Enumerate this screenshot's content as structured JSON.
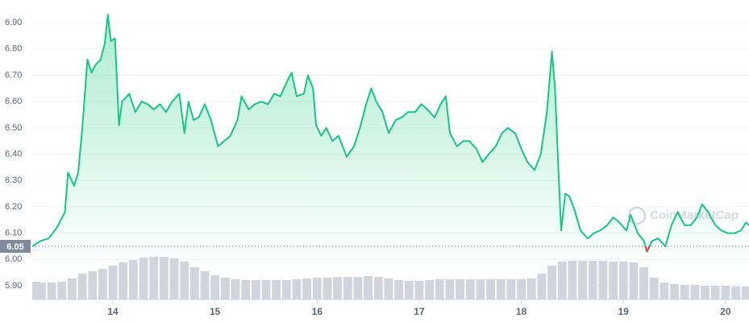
{
  "chart_data": {
    "type": "line",
    "watermark": "CoinMarketCap",
    "color": "#16c784",
    "down_color": "#ea3943",
    "reference_price": 6.05,
    "grid": true,
    "xlim": [
      13.21,
      20.23
    ],
    "ylim": [
      5.848,
      6.986
    ],
    "xticks": [
      14,
      15,
      16,
      17,
      18,
      19,
      20
    ],
    "yticks": [
      {
        "value": 6.9,
        "label": "6.90"
      },
      {
        "value": 6.8,
        "label": "6.80"
      },
      {
        "value": 6.7,
        "label": "6.70"
      },
      {
        "value": 6.6,
        "label": "6.60"
      },
      {
        "value": 6.5,
        "label": "6.50"
      },
      {
        "value": 6.4,
        "label": "6.40"
      },
      {
        "value": 6.3,
        "label": "6.30"
      },
      {
        "value": 6.2,
        "label": "6.20"
      },
      {
        "value": 6.1,
        "label": "6.10"
      },
      {
        "value": 6.0,
        "label": "6.00"
      },
      {
        "value": 5.9,
        "label": "5.90"
      }
    ],
    "x": [
      13.21,
      13.29,
      13.37,
      13.45,
      13.53,
      13.56,
      13.62,
      13.66,
      13.7,
      13.75,
      13.79,
      13.83,
      13.88,
      13.92,
      13.95,
      13.98,
      14.02,
      14.06,
      14.09,
      14.16,
      14.22,
      14.28,
      14.34,
      14.4,
      14.46,
      14.52,
      14.58,
      14.65,
      14.7,
      14.74,
      14.79,
      14.84,
      14.9,
      14.96,
      15.03,
      15.09,
      15.15,
      15.22,
      15.26,
      15.33,
      15.39,
      15.45,
      15.52,
      15.58,
      15.64,
      15.71,
      15.75,
      15.8,
      15.87,
      15.91,
      15.96,
      15.99,
      16.04,
      16.09,
      16.15,
      16.21,
      16.29,
      16.36,
      16.42,
      16.48,
      16.53,
      16.58,
      16.64,
      16.7,
      16.77,
      16.83,
      16.89,
      16.96,
      17.02,
      17.08,
      17.15,
      17.21,
      17.26,
      17.3,
      17.37,
      17.43,
      17.49,
      17.56,
      17.62,
      17.68,
      17.75,
      17.81,
      17.87,
      17.94,
      18.0,
      18.06,
      18.13,
      18.19,
      18.25,
      18.3,
      18.33,
      18.36,
      18.39,
      18.43,
      18.47,
      18.52,
      18.58,
      18.65,
      18.71,
      18.77,
      18.84,
      18.9,
      18.96,
      19.03,
      19.07,
      19.14,
      19.2,
      19.23,
      19.28,
      19.34,
      19.41,
      19.47,
      19.53,
      19.6,
      19.66,
      19.72,
      19.77,
      19.83,
      19.9,
      19.96,
      20.02,
      20.09,
      20.15,
      20.2,
      20.23
    ],
    "values": [
      6.05,
      6.07,
      6.08,
      6.12,
      6.18,
      6.33,
      6.28,
      6.33,
      6.5,
      6.76,
      6.71,
      6.74,
      6.76,
      6.82,
      6.93,
      6.83,
      6.84,
      6.51,
      6.6,
      6.63,
      6.56,
      6.6,
      6.59,
      6.57,
      6.59,
      6.56,
      6.6,
      6.63,
      6.48,
      6.6,
      6.53,
      6.54,
      6.59,
      6.53,
      6.43,
      6.45,
      6.47,
      6.53,
      6.62,
      6.57,
      6.59,
      6.6,
      6.59,
      6.63,
      6.62,
      6.68,
      6.71,
      6.62,
      6.63,
      6.7,
      6.65,
      6.51,
      6.47,
      6.5,
      6.45,
      6.47,
      6.39,
      6.43,
      6.5,
      6.59,
      6.65,
      6.6,
      6.56,
      6.48,
      6.53,
      6.54,
      6.56,
      6.56,
      6.59,
      6.57,
      6.54,
      6.59,
      6.62,
      6.48,
      6.43,
      6.45,
      6.45,
      6.42,
      6.37,
      6.4,
      6.43,
      6.48,
      6.5,
      6.48,
      6.42,
      6.37,
      6.34,
      6.4,
      6.56,
      6.79,
      6.65,
      6.37,
      6.11,
      6.25,
      6.24,
      6.19,
      6.11,
      6.08,
      6.1,
      6.11,
      6.13,
      6.16,
      6.14,
      6.11,
      6.17,
      6.1,
      6.07,
      6.03,
      6.07,
      6.08,
      6.05,
      6.13,
      6.18,
      6.13,
      6.13,
      6.16,
      6.21,
      6.18,
      6.13,
      6.11,
      6.1,
      6.1,
      6.11,
      6.14,
      6.13
    ],
    "volume": {
      "x": [
        13.2,
        13.3,
        13.4,
        13.5,
        13.6,
        13.7,
        13.8,
        13.9,
        14.0,
        14.1,
        14.2,
        14.3,
        14.4,
        14.5,
        14.6,
        14.7,
        14.8,
        14.9,
        15.0,
        15.1,
        15.2,
        15.3,
        15.4,
        15.5,
        15.6,
        15.7,
        15.8,
        15.9,
        16.0,
        16.1,
        16.2,
        16.3,
        16.4,
        16.5,
        16.6,
        16.7,
        16.8,
        16.9,
        17.0,
        17.1,
        17.2,
        17.3,
        17.4,
        17.5,
        17.6,
        17.7,
        17.8,
        17.9,
        18.0,
        18.1,
        18.2,
        18.3,
        18.4,
        18.5,
        18.6,
        18.7,
        18.8,
        18.9,
        19.0,
        19.1,
        19.2,
        19.3,
        19.4,
        19.5,
        19.6,
        19.7,
        19.8,
        19.9,
        20.0,
        20.1,
        20.2
      ],
      "values": [
        22,
        21,
        21,
        22,
        26,
        32,
        35,
        38,
        42,
        46,
        49,
        52,
        53,
        53,
        51,
        47,
        40,
        35,
        30,
        27,
        25,
        24,
        24,
        24,
        24,
        24,
        25,
        26,
        27,
        27,
        28,
        28,
        28,
        29,
        28,
        26,
        24,
        23,
        23,
        24,
        25,
        25,
        25,
        25,
        25,
        25,
        25,
        25,
        25,
        26,
        32,
        42,
        47,
        48,
        48,
        48,
        48,
        47,
        47,
        46,
        40,
        27,
        21,
        19,
        18,
        18,
        17,
        17,
        17,
        16,
        16
      ]
    }
  }
}
